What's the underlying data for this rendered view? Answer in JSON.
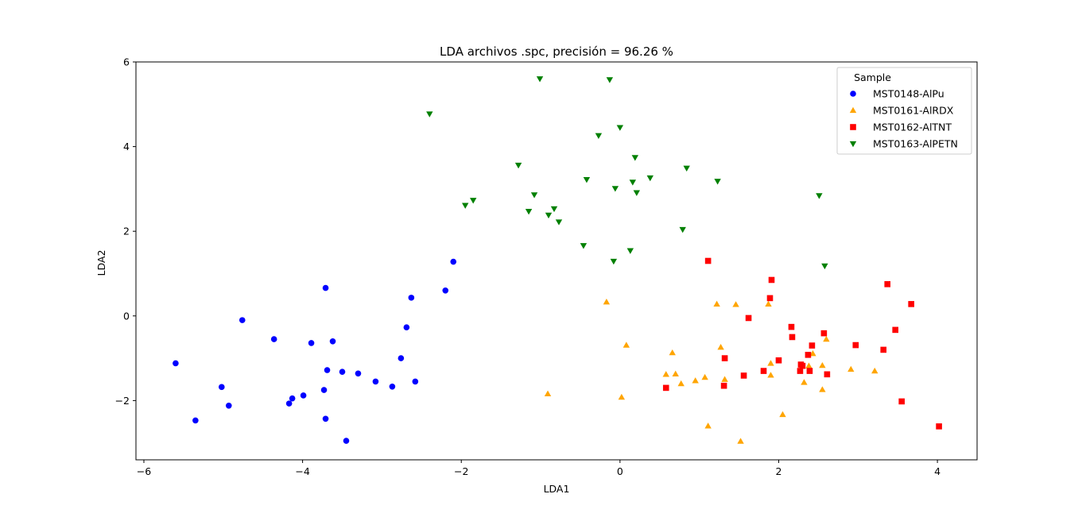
{
  "chart_data": {
    "type": "scatter",
    "title": "LDA archivos .spc, precisión = 96.26 %",
    "xlabel": "LDA1",
    "ylabel": "LDA2",
    "xlim": [
      -6.1,
      4.5
    ],
    "ylim": [
      -3.4,
      6.0
    ],
    "x_ticks": [
      -6,
      -4,
      -2,
      0,
      2,
      4
    ],
    "x_tick_labels": [
      "−6",
      "−4",
      "−2",
      "0",
      "2",
      "4"
    ],
    "y_ticks": [
      -2,
      0,
      2,
      4,
      6
    ],
    "y_tick_labels": [
      "−2",
      "0",
      "2",
      "4",
      "6"
    ],
    "grid": false,
    "legend": {
      "title": "Sample",
      "placement": "top-right"
    },
    "series": [
      {
        "name": "MST0148-AlPu",
        "marker": "circle",
        "color": "#0000ff",
        "points": [
          [
            -5.6,
            -1.12
          ],
          [
            -5.35,
            -2.47
          ],
          [
            -5.02,
            -1.68
          ],
          [
            -4.93,
            -2.12
          ],
          [
            -4.76,
            -0.1
          ],
          [
            -4.36,
            -0.55
          ],
          [
            -4.17,
            -2.07
          ],
          [
            -4.13,
            -1.95
          ],
          [
            -3.99,
            -1.88
          ],
          [
            -3.89,
            -0.64
          ],
          [
            -3.73,
            -1.75
          ],
          [
            -3.71,
            -2.43
          ],
          [
            -3.71,
            0.66
          ],
          [
            -3.69,
            -1.28
          ],
          [
            -3.62,
            -0.6
          ],
          [
            -3.5,
            -1.32
          ],
          [
            -3.45,
            -2.95
          ],
          [
            -3.3,
            -1.36
          ],
          [
            -3.08,
            -1.55
          ],
          [
            -2.87,
            -1.67
          ],
          [
            -2.76,
            -1.0
          ],
          [
            -2.69,
            -0.27
          ],
          [
            -2.63,
            0.43
          ],
          [
            -2.58,
            -1.55
          ],
          [
            -2.2,
            0.6
          ],
          [
            -2.1,
            1.28
          ]
        ]
      },
      {
        "name": "MST0161-AlRDX",
        "marker": "triangle-up",
        "color": "#ffa500",
        "points": [
          [
            -0.91,
            -1.84
          ],
          [
            -0.17,
            0.33
          ],
          [
            0.02,
            -1.92
          ],
          [
            0.08,
            -0.69
          ],
          [
            0.58,
            -1.38
          ],
          [
            0.66,
            -0.87
          ],
          [
            0.7,
            -1.37
          ],
          [
            0.77,
            -1.6
          ],
          [
            0.95,
            -1.53
          ],
          [
            1.07,
            -1.45
          ],
          [
            1.11,
            -2.6
          ],
          [
            1.22,
            0.28
          ],
          [
            1.27,
            -0.74
          ],
          [
            1.32,
            -1.5
          ],
          [
            1.46,
            0.27
          ],
          [
            1.52,
            -2.96
          ],
          [
            1.87,
            0.28
          ],
          [
            1.9,
            -1.4
          ],
          [
            1.9,
            -1.12
          ],
          [
            2.05,
            -2.33
          ],
          [
            2.32,
            -1.57
          ],
          [
            2.38,
            -1.18
          ],
          [
            2.43,
            -0.89
          ],
          [
            2.55,
            -1.74
          ],
          [
            2.55,
            -1.17
          ],
          [
            2.6,
            -0.55
          ],
          [
            2.91,
            -1.26
          ],
          [
            3.21,
            -1.3
          ]
        ]
      },
      {
        "name": "MST0162-AlTNT",
        "marker": "square",
        "color": "#ff0000",
        "points": [
          [
            0.58,
            -1.7
          ],
          [
            1.11,
            1.3
          ],
          [
            1.31,
            -1.65
          ],
          [
            1.32,
            -1.0
          ],
          [
            1.56,
            -1.41
          ],
          [
            1.62,
            -0.05
          ],
          [
            1.81,
            -1.3
          ],
          [
            1.89,
            0.42
          ],
          [
            1.91,
            0.85
          ],
          [
            2.0,
            -1.05
          ],
          [
            2.16,
            -0.26
          ],
          [
            2.17,
            -0.5
          ],
          [
            2.27,
            -1.3
          ],
          [
            2.28,
            -1.15
          ],
          [
            2.3,
            -1.18
          ],
          [
            2.37,
            -0.92
          ],
          [
            2.39,
            -1.3
          ],
          [
            2.42,
            -0.7
          ],
          [
            2.57,
            -0.41
          ],
          [
            2.61,
            -1.38
          ],
          [
            2.97,
            -0.69
          ],
          [
            3.32,
            -0.8
          ],
          [
            3.37,
            0.75
          ],
          [
            3.47,
            -0.33
          ],
          [
            3.55,
            -2.02
          ],
          [
            3.67,
            0.28
          ],
          [
            4.02,
            -2.61
          ]
        ]
      },
      {
        "name": "MST0163-AlPETN",
        "marker": "triangle-down",
        "color": "#008000",
        "points": [
          [
            -2.4,
            4.77
          ],
          [
            -1.95,
            2.61
          ],
          [
            -1.85,
            2.73
          ],
          [
            -1.28,
            3.56
          ],
          [
            -1.15,
            2.47
          ],
          [
            -1.08,
            2.86
          ],
          [
            -1.01,
            5.6
          ],
          [
            -0.9,
            2.38
          ],
          [
            -0.83,
            2.53
          ],
          [
            -0.77,
            2.22
          ],
          [
            -0.46,
            1.66
          ],
          [
            -0.42,
            3.22
          ],
          [
            -0.27,
            4.26
          ],
          [
            -0.13,
            5.58
          ],
          [
            -0.08,
            1.29
          ],
          [
            -0.06,
            3.01
          ],
          [
            0.0,
            4.45
          ],
          [
            0.13,
            1.54
          ],
          [
            0.16,
            3.16
          ],
          [
            0.19,
            3.74
          ],
          [
            0.21,
            2.91
          ],
          [
            0.38,
            3.26
          ],
          [
            0.79,
            2.04
          ],
          [
            0.84,
            3.49
          ],
          [
            1.23,
            3.18
          ],
          [
            2.51,
            2.84
          ],
          [
            2.58,
            1.18
          ]
        ]
      }
    ]
  }
}
